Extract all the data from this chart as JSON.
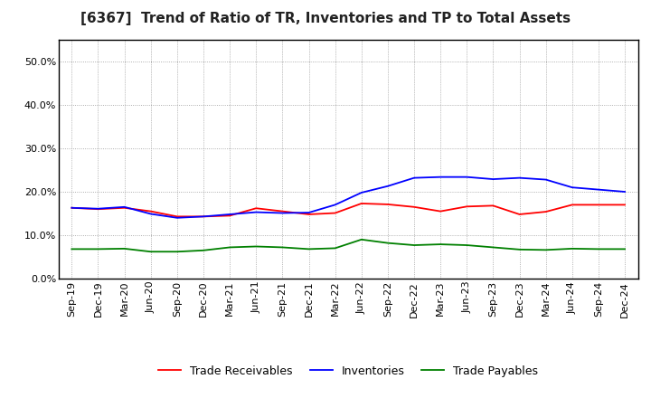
{
  "title": "[6367]  Trend of Ratio of TR, Inventories and TP to Total Assets",
  "x_labels": [
    "Sep-19",
    "Dec-19",
    "Mar-20",
    "Jun-20",
    "Sep-20",
    "Dec-20",
    "Mar-21",
    "Jun-21",
    "Sep-21",
    "Dec-21",
    "Mar-22",
    "Jun-22",
    "Sep-22",
    "Dec-22",
    "Mar-23",
    "Jun-23",
    "Sep-23",
    "Dec-23",
    "Mar-24",
    "Jun-24",
    "Sep-24",
    "Dec-24"
  ],
  "trade_receivables": [
    0.163,
    0.16,
    0.163,
    0.155,
    0.143,
    0.143,
    0.145,
    0.162,
    0.155,
    0.148,
    0.151,
    0.173,
    0.171,
    0.165,
    0.155,
    0.166,
    0.168,
    0.148,
    0.154,
    0.17,
    0.17,
    0.17
  ],
  "inventories": [
    0.163,
    0.161,
    0.165,
    0.149,
    0.14,
    0.143,
    0.148,
    0.153,
    0.151,
    0.152,
    0.17,
    0.198,
    0.213,
    0.232,
    0.234,
    0.234,
    0.229,
    0.232,
    0.228,
    0.21,
    0.205,
    0.2
  ],
  "trade_payables": [
    0.068,
    0.068,
    0.069,
    0.062,
    0.062,
    0.065,
    0.072,
    0.074,
    0.072,
    0.068,
    0.07,
    0.09,
    0.082,
    0.077,
    0.079,
    0.077,
    0.072,
    0.067,
    0.066,
    0.069,
    0.068,
    0.068
  ],
  "ylim": [
    0.0,
    0.55
  ],
  "yticks": [
    0.0,
    0.1,
    0.2,
    0.3,
    0.4,
    0.5
  ],
  "line_colors": {
    "trade_receivables": "#ff0000",
    "inventories": "#0000ff",
    "trade_payables": "#008000"
  },
  "legend_labels": [
    "Trade Receivables",
    "Inventories",
    "Trade Payables"
  ],
  "background_color": "#ffffff",
  "grid_color": "#999999",
  "title_fontsize": 11,
  "axis_fontsize": 8,
  "legend_fontsize": 9
}
